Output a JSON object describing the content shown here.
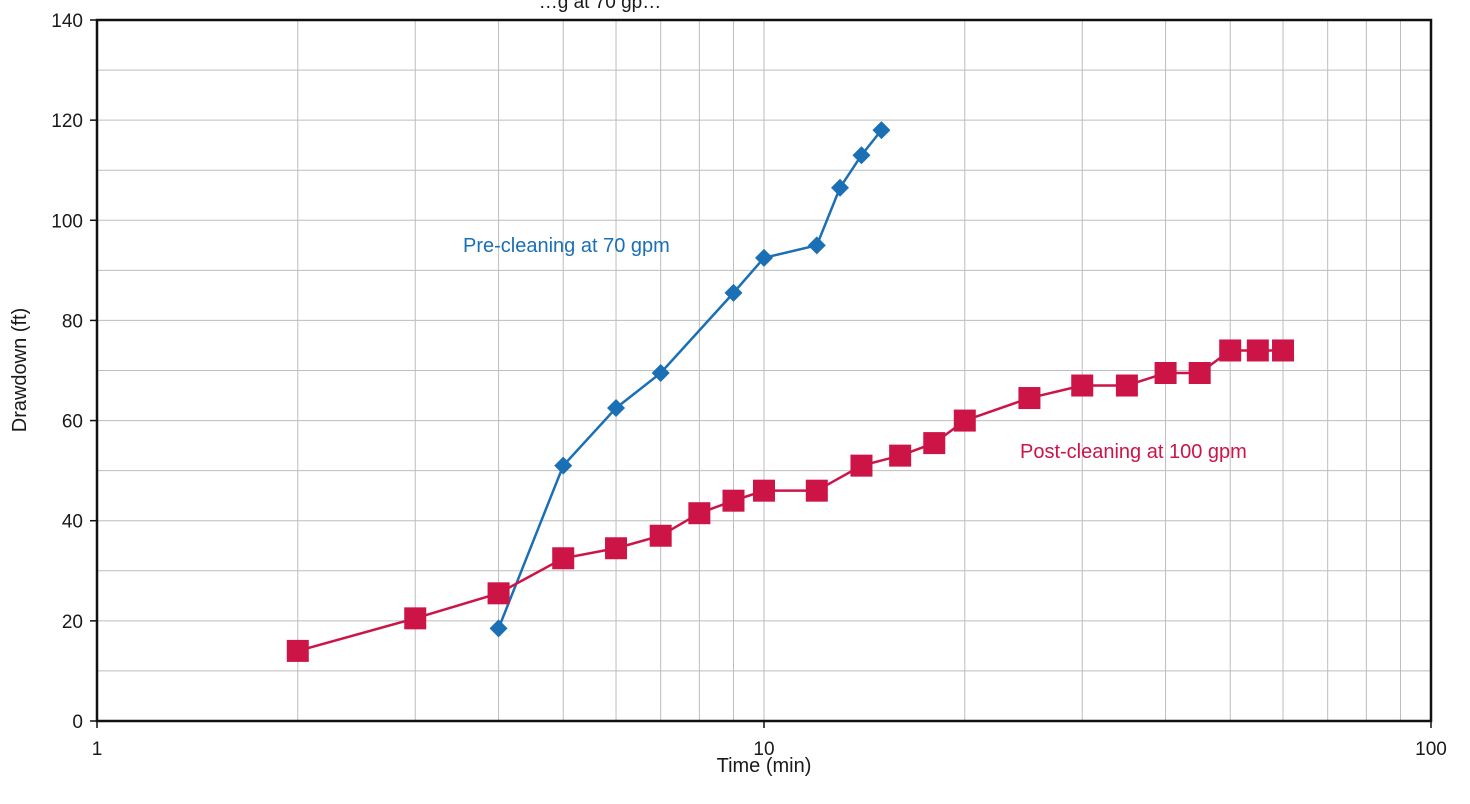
{
  "chart_data": {
    "type": "scatter",
    "title": "…g at 70 gp…",
    "xlabel": "Time (min)",
    "ylabel": "Drawdown (ft)",
    "x_scale": "log",
    "xlim": [
      1,
      100
    ],
    "ylim": [
      0,
      140
    ],
    "x_ticks": [
      "1",
      "10",
      "100"
    ],
    "y_ticks": [
      "0",
      "20",
      "40",
      "60",
      "80",
      "100",
      "120",
      "140"
    ],
    "grid": true,
    "series": [
      {
        "name": "Pre-cleaning at 70 gpm",
        "color": "#1a6fb5",
        "marker": "diamond",
        "points": [
          {
            "x": 4,
            "y": 18.5
          },
          {
            "x": 5,
            "y": 51
          },
          {
            "x": 6,
            "y": 62.5
          },
          {
            "x": 7,
            "y": 69.5
          },
          {
            "x": 9,
            "y": 85.5
          },
          {
            "x": 10,
            "y": 92.5
          },
          {
            "x": 12,
            "y": 95
          },
          {
            "x": 13,
            "y": 106.5
          },
          {
            "x": 14,
            "y": 113
          },
          {
            "x": 15,
            "y": 118
          }
        ]
      },
      {
        "name": "Post-cleaning at 100 gpm",
        "color": "#cc1447",
        "marker": "square",
        "points": [
          {
            "x": 2,
            "y": 14
          },
          {
            "x": 3,
            "y": 20.5
          },
          {
            "x": 4,
            "y": 25.5
          },
          {
            "x": 5,
            "y": 32.5
          },
          {
            "x": 6,
            "y": 34.5
          },
          {
            "x": 7,
            "y": 37
          },
          {
            "x": 8,
            "y": 41.5
          },
          {
            "x": 9,
            "y": 44
          },
          {
            "x": 10,
            "y": 46
          },
          {
            "x": 12,
            "y": 46
          },
          {
            "x": 14,
            "y": 51
          },
          {
            "x": 16,
            "y": 53
          },
          {
            "x": 18,
            "y": 55.5
          },
          {
            "x": 20,
            "y": 60
          },
          {
            "x": 25,
            "y": 64.5
          },
          {
            "x": 30,
            "y": 67
          },
          {
            "x": 35,
            "y": 67
          },
          {
            "x": 40,
            "y": 69.5
          },
          {
            "x": 45,
            "y": 69.5
          },
          {
            "x": 50,
            "y": 74
          },
          {
            "x": 55,
            "y": 74
          },
          {
            "x": 60,
            "y": 74
          }
        ]
      }
    ]
  }
}
